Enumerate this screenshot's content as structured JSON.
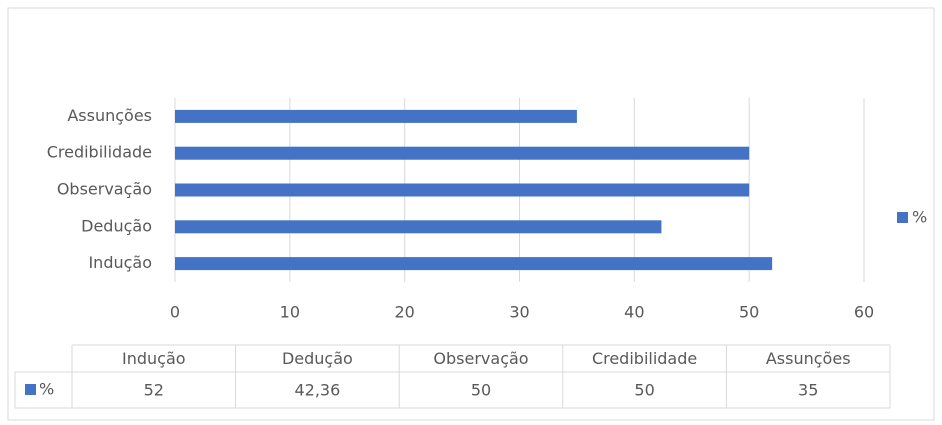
{
  "chart_data": {
    "type": "bar",
    "orientation": "horizontal",
    "categories": [
      "Indução",
      "Dedução",
      "Observação",
      "Credibilidade",
      "Assunções"
    ],
    "series": [
      {
        "name": "%",
        "color": "#4472c4",
        "values": [
          52,
          42.36,
          50,
          50,
          35
        ],
        "value_labels": [
          "52",
          "42,36",
          "50",
          "50",
          "35"
        ]
      }
    ],
    "xlim": [
      0,
      60
    ],
    "xticks": [
      0,
      10,
      20,
      30,
      40,
      50,
      60
    ],
    "grid": true,
    "legend": "right",
    "data_table": true
  }
}
